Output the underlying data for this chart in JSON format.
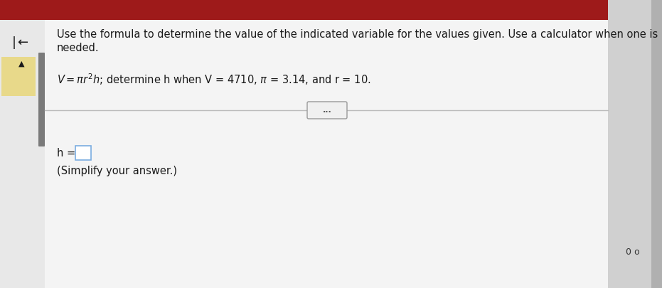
{
  "bg_outer": "#c8c8c8",
  "bg_main": "#f0f0f0",
  "bg_white_panel": "#f8f8f8",
  "red_bar_color": "#9e1a1a",
  "left_panel_bg": "#e0e0e0",
  "scroll_bar_color": "#888888",
  "yellow_note_color": "#e8d98a",
  "divider_color": "#bbbbbb",
  "btn_bg": "#f0f0f0",
  "btn_border": "#999999",
  "answer_box_border": "#7aade0",
  "text_color": "#1a1a1a",
  "corner_text_color": "#333333",
  "top_text_line1": "Use the formula to determine the value of the indicated variable for the values given. Use a calculator when one is",
  "top_text_line2": "needed.",
  "formula_text": "V = πr²h; determine h when V = 4710, π = 3.14, and r = 10.",
  "answer_prefix": "h =",
  "simplify_text": "(Simplify your answer.)",
  "corner_text": "0 o",
  "divider_button_text": "...",
  "left_arrow": "←",
  "up_arrow": "▲",
  "font_size_body": 10.5,
  "font_size_small": 9,
  "font_size_arrow": 13
}
